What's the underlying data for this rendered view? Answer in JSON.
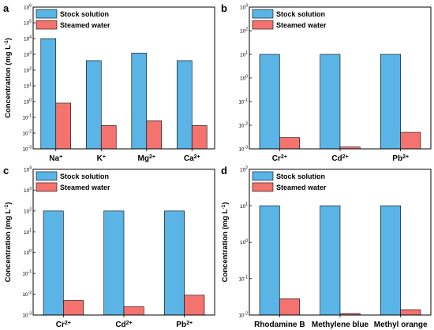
{
  "colors": {
    "stock": "#5ab4e5",
    "steamed": "#f4736e",
    "axis": "#000000",
    "background": "#ffffff"
  },
  "chart_data": [
    {
      "panel": "a",
      "type": "bar",
      "ylabel": "Concentration (mg L^-1)",
      "yscale": "log",
      "ylim": [
        0.001,
        1000000
      ],
      "legend_position": "top-left",
      "categories": [
        {
          "base": "Na",
          "sup": "+"
        },
        {
          "base": "K",
          "sup": "+"
        },
        {
          "base": "Mg",
          "sup": "2+"
        },
        {
          "base": "Ca",
          "sup": "2+"
        }
      ],
      "series": [
        {
          "name": "Stock solution",
          "values": [
            10000,
            400,
            1200,
            400
          ]
        },
        {
          "name": "Steamed water",
          "values": [
            0.8,
            0.03,
            0.06,
            0.03
          ]
        }
      ]
    },
    {
      "panel": "b",
      "type": "bar",
      "ylabel": "",
      "yscale": "log",
      "ylim": [
        0.001,
        1000
      ],
      "legend_position": "top-left",
      "categories": [
        {
          "base": "Cr",
          "sup": "2+"
        },
        {
          "base": "Cd",
          "sup": "2+"
        },
        {
          "base": "Pb",
          "sup": "2+"
        }
      ],
      "series": [
        {
          "name": "Stock solution",
          "values": [
            10,
            10,
            10
          ]
        },
        {
          "name": "Steamed water",
          "values": [
            0.003,
            0.0012,
            0.005
          ]
        }
      ]
    },
    {
      "panel": "c",
      "type": "bar",
      "ylabel": "Concentration (mg L^-1)",
      "yscale": "log",
      "ylim": [
        0.001,
        10000
      ],
      "legend_position": "top-left",
      "categories": [
        {
          "base": "Cr",
          "sup": "2+"
        },
        {
          "base": "Cd",
          "sup": "2+"
        },
        {
          "base": "Pb",
          "sup": "2+"
        }
      ],
      "series": [
        {
          "name": "Stock solution",
          "values": [
            100,
            100,
            100
          ]
        },
        {
          "name": "Steamed water",
          "values": [
            0.005,
            0.0025,
            0.009
          ]
        }
      ]
    },
    {
      "panel": "d",
      "type": "bar",
      "ylabel": "Concentration (mg L^-1)",
      "yscale": "log",
      "ylim": [
        0.01,
        100
      ],
      "legend_position": "top-left",
      "categories": [
        {
          "base": "Rhodamine B",
          "sup": ""
        },
        {
          "base": "Methylene blue",
          "sup": ""
        },
        {
          "base": "Methyl orange",
          "sup": ""
        }
      ],
      "series": [
        {
          "name": "Stock solution",
          "values": [
            10,
            10,
            10
          ]
        },
        {
          "name": "Steamed water",
          "values": [
            0.028,
            0.011,
            0.014
          ]
        }
      ]
    }
  ]
}
